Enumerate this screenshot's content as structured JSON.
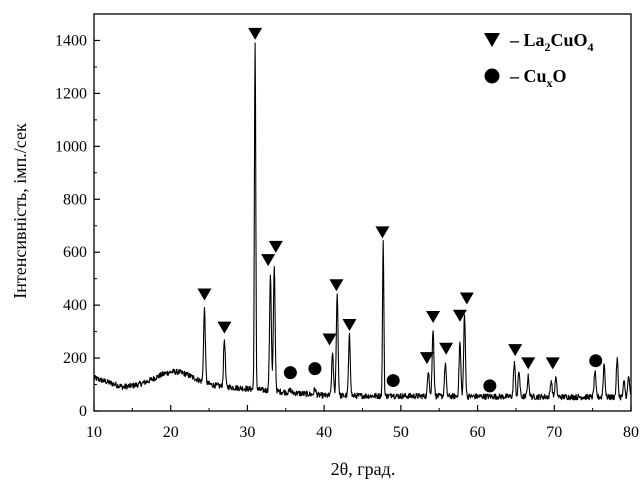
{
  "chart_data": {
    "type": "line",
    "xlabel": "2θ, град.",
    "ylabel": "Інтенсивність, імп./сек",
    "xlim": [
      10,
      80
    ],
    "ylim": [
      0,
      1500
    ],
    "xticks": [
      10,
      20,
      30,
      40,
      50,
      60,
      70,
      80
    ],
    "yticks": [
      0,
      200,
      400,
      600,
      800,
      1000,
      1200,
      1400
    ],
    "grid": false,
    "legend_position": "top-right",
    "legend": [
      {
        "marker": "triangle-down",
        "dash": "– ",
        "base": "La",
        "sub1": "2",
        "mid": "CuO",
        "sub2": "4"
      },
      {
        "marker": "circle",
        "dash": "– ",
        "base": "Cu",
        "sub1": "x",
        "mid": "O",
        "sub2": ""
      }
    ],
    "peaks": [
      {
        "x": 24.4,
        "y": 385
      },
      {
        "x": 27.0,
        "y": 270
      },
      {
        "x": 31.0,
        "y": 1385
      },
      {
        "x": 33.0,
        "y": 520
      },
      {
        "x": 33.5,
        "y": 540
      },
      {
        "x": 35.6,
        "y": 80
      },
      {
        "x": 38.8,
        "y": 85
      },
      {
        "x": 41.1,
        "y": 220
      },
      {
        "x": 41.7,
        "y": 440
      },
      {
        "x": 43.3,
        "y": 285
      },
      {
        "x": 47.7,
        "y": 635
      },
      {
        "x": 48.9,
        "y": 65
      },
      {
        "x": 53.6,
        "y": 155
      },
      {
        "x": 54.2,
        "y": 310
      },
      {
        "x": 55.8,
        "y": 180
      },
      {
        "x": 57.7,
        "y": 260
      },
      {
        "x": 58.3,
        "y": 360
      },
      {
        "x": 61.6,
        "y": 55
      },
      {
        "x": 64.8,
        "y": 185
      },
      {
        "x": 65.4,
        "y": 150
      },
      {
        "x": 66.6,
        "y": 130
      },
      {
        "x": 69.6,
        "y": 115
      },
      {
        "x": 70.2,
        "y": 125
      },
      {
        "x": 75.3,
        "y": 150
      },
      {
        "x": 76.5,
        "y": 180
      },
      {
        "x": 78.2,
        "y": 195
      },
      {
        "x": 79.1,
        "y": 110
      },
      {
        "x": 79.7,
        "y": 130
      }
    ],
    "markers": [
      {
        "type": "triangle",
        "x": 24.4,
        "y": 440
      },
      {
        "type": "triangle",
        "x": 27.0,
        "y": 315
      },
      {
        "type": "triangle",
        "x": 31.0,
        "y": 1425
      },
      {
        "type": "triangle",
        "x": 32.7,
        "y": 570
      },
      {
        "type": "triangle",
        "x": 33.7,
        "y": 620
      },
      {
        "type": "circle",
        "x": 35.6,
        "y": 145
      },
      {
        "type": "circle",
        "x": 38.8,
        "y": 160
      },
      {
        "type": "triangle",
        "x": 40.7,
        "y": 270
      },
      {
        "type": "triangle",
        "x": 41.6,
        "y": 475
      },
      {
        "type": "triangle",
        "x": 43.3,
        "y": 325
      },
      {
        "type": "triangle",
        "x": 47.6,
        "y": 675
      },
      {
        "type": "circle",
        "x": 49.0,
        "y": 115
      },
      {
        "type": "triangle",
        "x": 53.4,
        "y": 200
      },
      {
        "type": "triangle",
        "x": 54.2,
        "y": 355
      },
      {
        "type": "triangle",
        "x": 55.9,
        "y": 235
      },
      {
        "type": "triangle",
        "x": 57.7,
        "y": 360
      },
      {
        "type": "triangle",
        "x": 58.6,
        "y": 425
      },
      {
        "type": "circle",
        "x": 61.6,
        "y": 95
      },
      {
        "type": "triangle",
        "x": 64.9,
        "y": 230
      },
      {
        "type": "triangle",
        "x": 66.6,
        "y": 180
      },
      {
        "type": "triangle",
        "x": 69.8,
        "y": 180
      },
      {
        "type": "circle",
        "x": 75.4,
        "y": 190
      }
    ]
  }
}
